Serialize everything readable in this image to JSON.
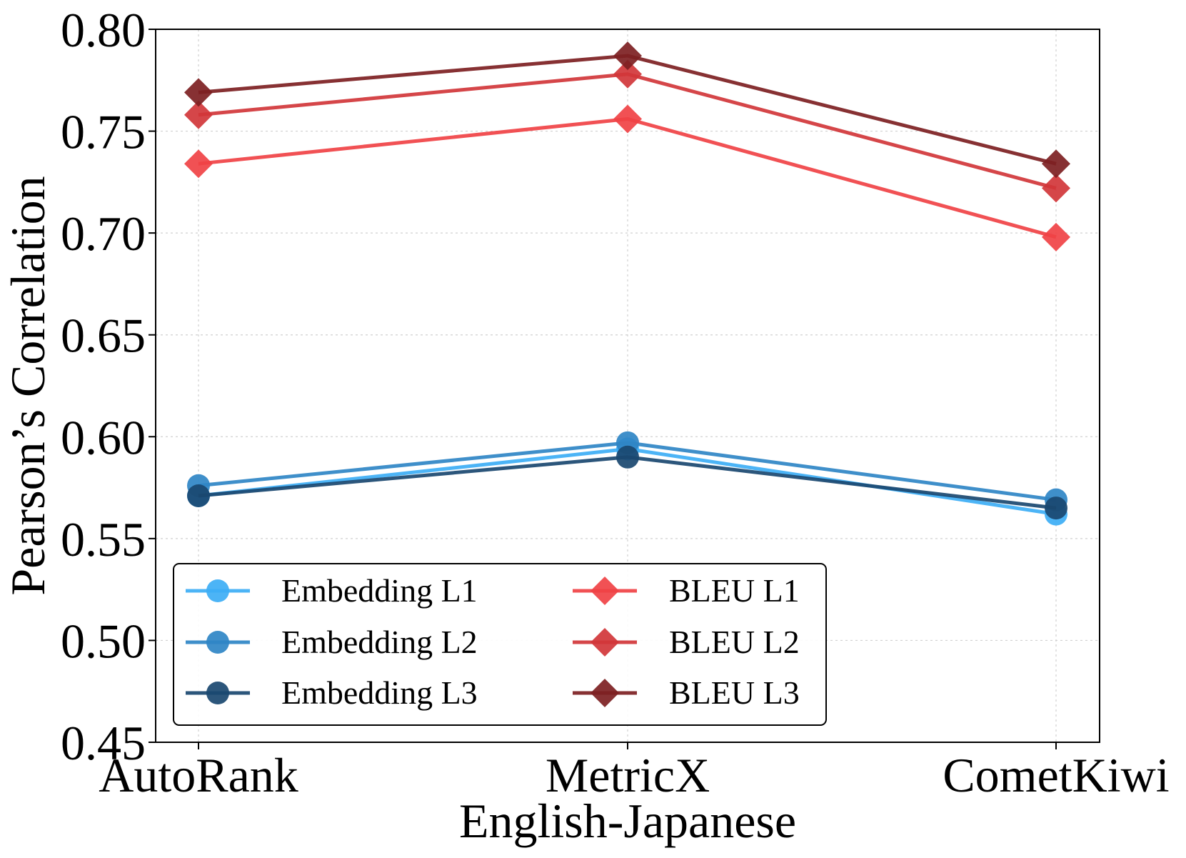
{
  "chart_data": {
    "type": "line",
    "title": "",
    "xlabel": "English-Japanese",
    "ylabel": "Pearson’s Correlation",
    "categories": [
      "AutoRank",
      "MetricX",
      "CometKiwi"
    ],
    "ylim": [
      0.45,
      0.8
    ],
    "yticks": [
      "0.45",
      "0.50",
      "0.55",
      "0.60",
      "0.65",
      "0.70",
      "0.75",
      "0.80"
    ],
    "grid": true,
    "legend_position": "lower-left",
    "series": [
      {
        "name": "Embedding L1",
        "marker": "circle",
        "color": "#3DAEF5",
        "values": [
          0.571,
          0.594,
          0.562
        ]
      },
      {
        "name": "Embedding L2",
        "marker": "circle",
        "color": "#2F86C6",
        "values": [
          0.576,
          0.597,
          0.569
        ]
      },
      {
        "name": "Embedding L3",
        "marker": "circle",
        "color": "#1A4870",
        "values": [
          0.571,
          0.59,
          0.565
        ]
      },
      {
        "name": "BLEU L1",
        "marker": "diamond",
        "color": "#F04245",
        "values": [
          0.734,
          0.756,
          0.698
        ]
      },
      {
        "name": "BLEU L2",
        "marker": "diamond",
        "color": "#D1363A",
        "values": [
          0.758,
          0.778,
          0.722
        ]
      },
      {
        "name": "BLEU L3",
        "marker": "diamond",
        "color": "#7D1F22",
        "values": [
          0.769,
          0.787,
          0.734
        ]
      }
    ]
  }
}
